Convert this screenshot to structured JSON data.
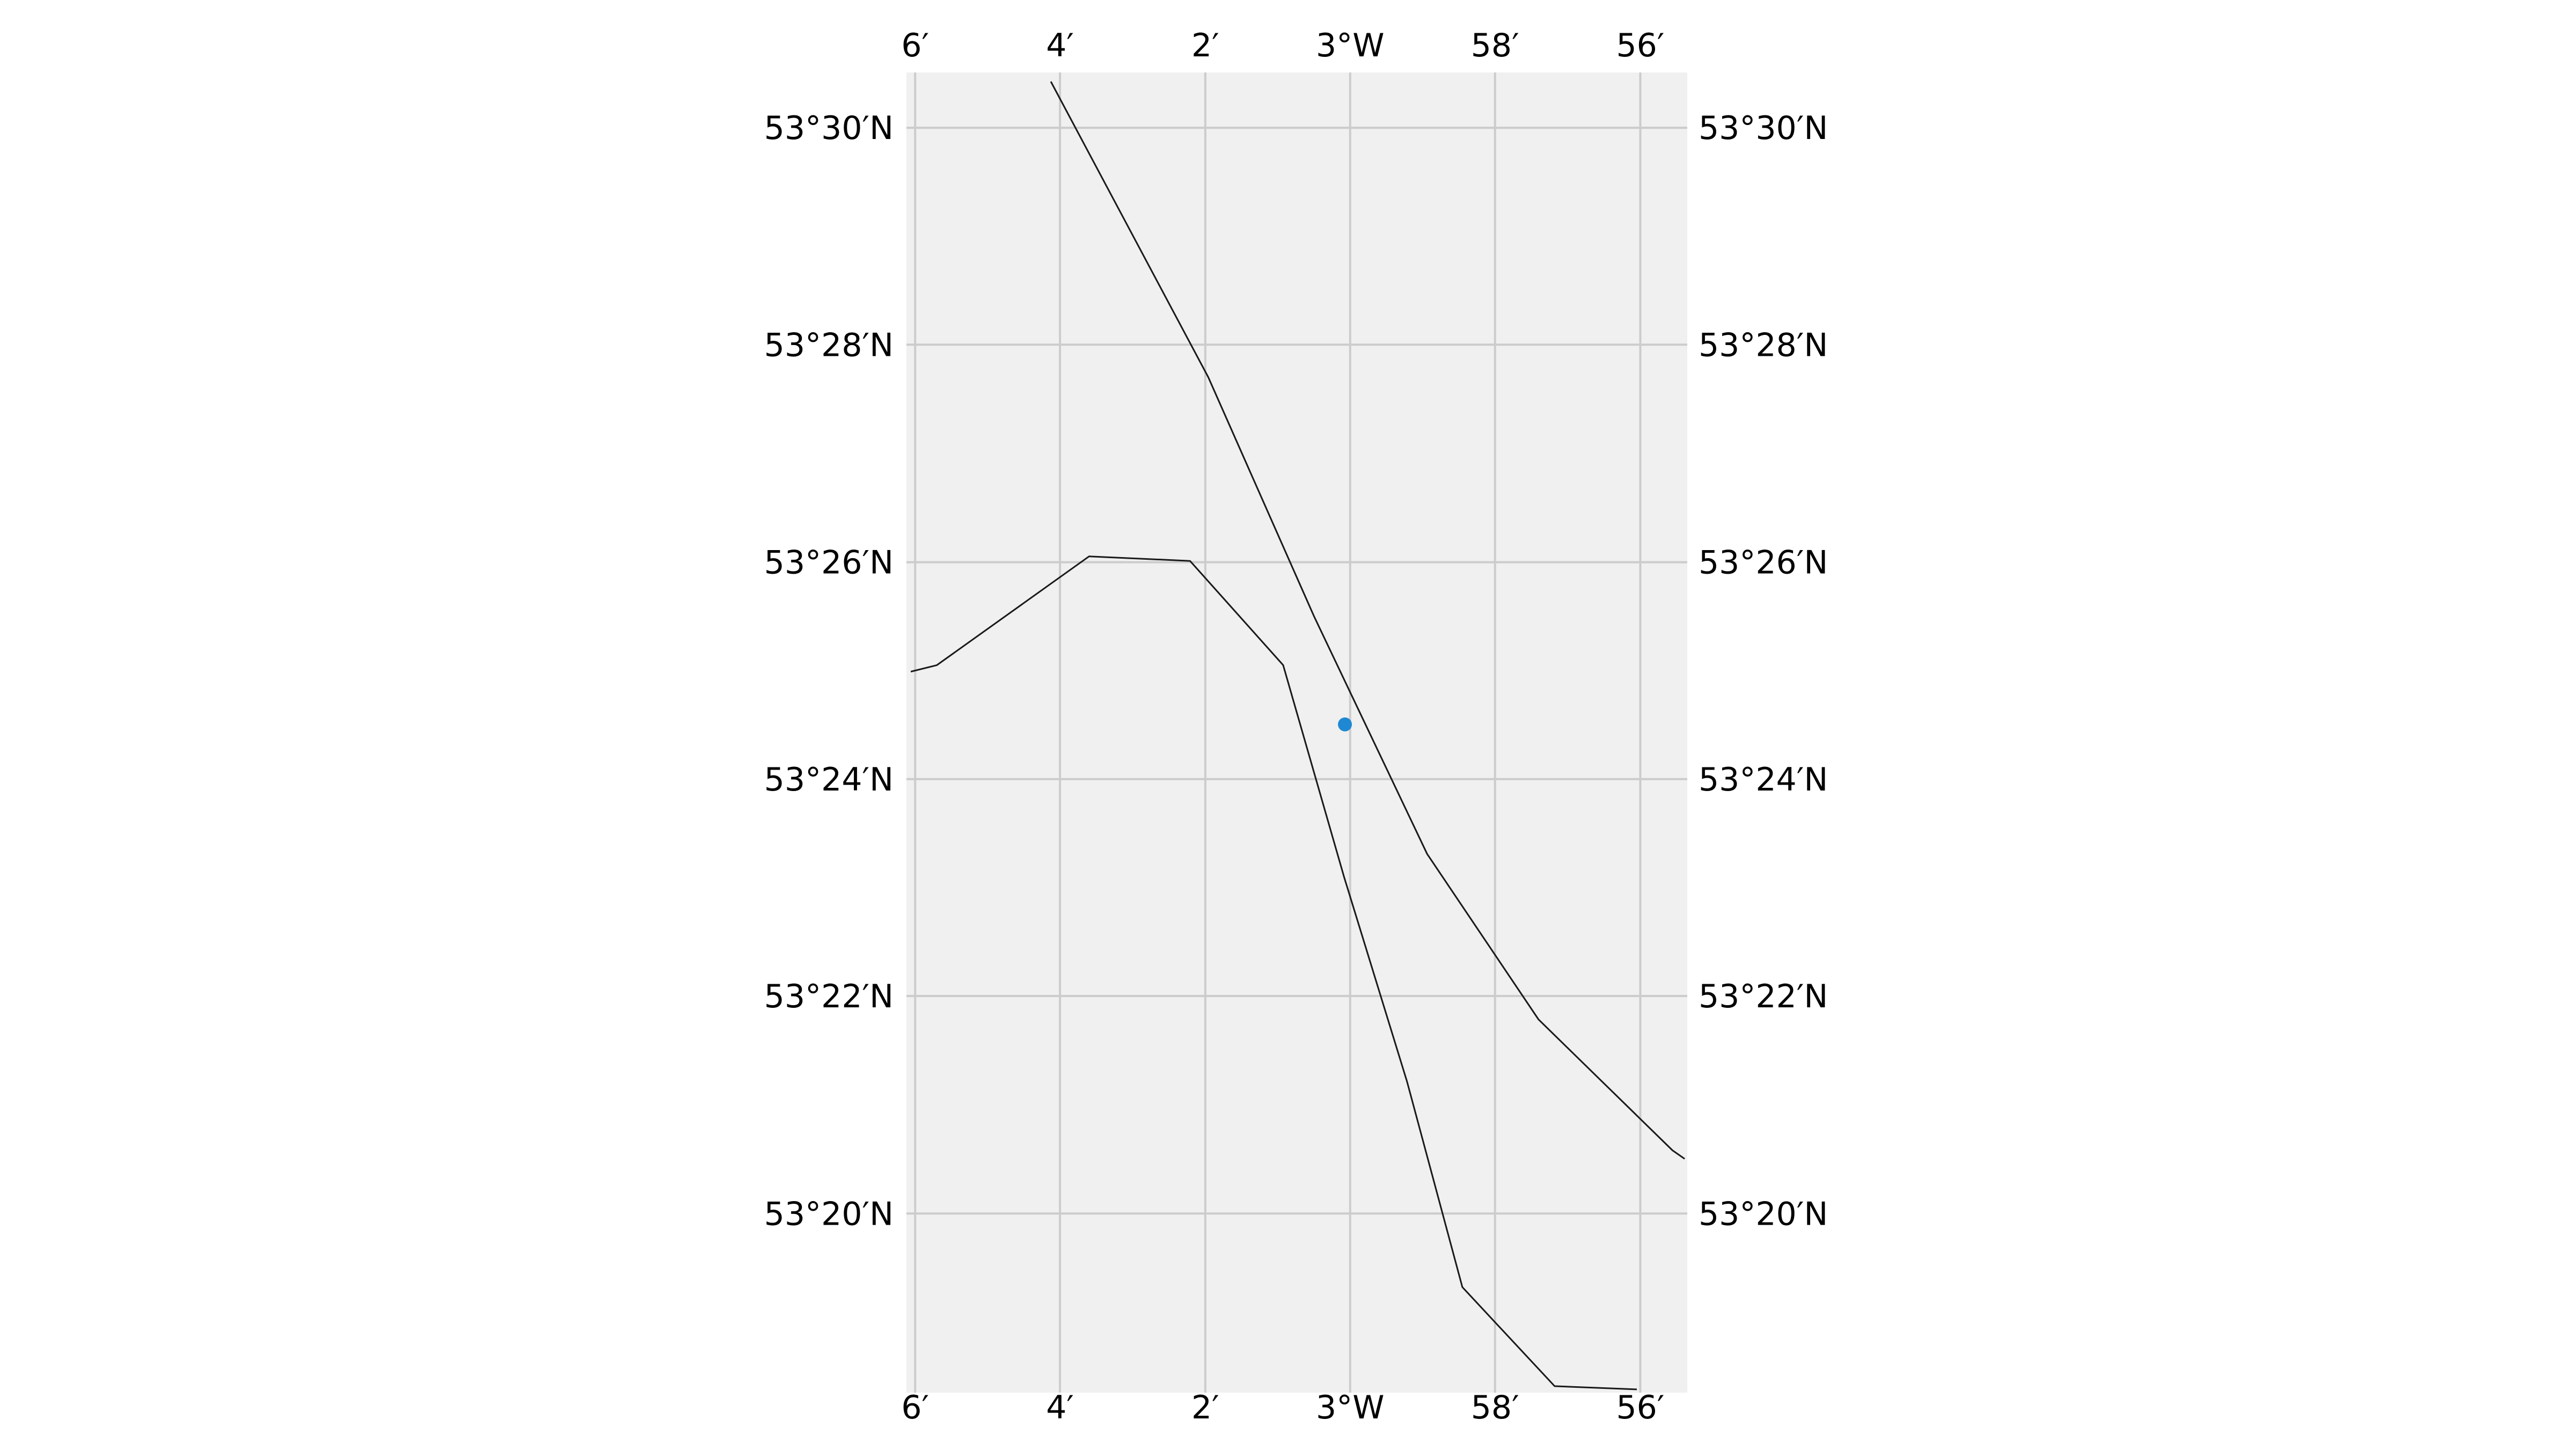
{
  "map": {
    "extent": {
      "lon_min": -3.102,
      "lon_max": -2.9225,
      "lat_min": 53.3058,
      "lat_max": 53.5085
    },
    "background_color": "#f0f0f0",
    "gridline_color": "#cccccc",
    "line_color": "#1a1a1a",
    "marker_color": "#1f88d2",
    "lon_ticks": [
      {
        "value": -3.1,
        "label": "6′"
      },
      {
        "value": -3.0667,
        "label": "4′"
      },
      {
        "value": -3.0333,
        "label": "2′"
      },
      {
        "value": -3.0,
        "label": "3°W"
      },
      {
        "value": -2.9667,
        "label": "58′"
      },
      {
        "value": -2.9333,
        "label": "56′"
      }
    ],
    "lat_ticks": [
      {
        "value": 53.5,
        "label": "53°30′N"
      },
      {
        "value": 53.4667,
        "label": "53°28′N"
      },
      {
        "value": 53.4333,
        "label": "53°26′N"
      },
      {
        "value": 53.4,
        "label": "53°24′N"
      },
      {
        "value": 53.3667,
        "label": "53°22′N"
      },
      {
        "value": 53.3333,
        "label": "53°20′N"
      }
    ],
    "lines": [
      {
        "id": "line-a",
        "points": [
          [
            -3.0688,
            53.5071
          ],
          [
            -3.0326,
            53.4617
          ],
          [
            -3.0083,
            53.425
          ],
          [
            -2.9823,
            53.3885
          ],
          [
            -2.9567,
            53.3631
          ],
          [
            -2.9259,
            53.343
          ],
          [
            -2.9231,
            53.3417
          ]
        ]
      },
      {
        "id": "line-b",
        "points": [
          [
            -3.101,
            53.4165
          ],
          [
            -3.095,
            53.4175
          ],
          [
            -3.06,
            53.4342
          ],
          [
            -3.0368,
            53.4335
          ],
          [
            -3.0154,
            53.4175
          ],
          [
            -3.0014,
            53.385
          ],
          [
            -2.9869,
            53.3535
          ],
          [
            -2.9742,
            53.322
          ],
          [
            -2.953,
            53.3068
          ],
          [
            -2.9341,
            53.3063
          ]
        ]
      }
    ],
    "markers": [
      {
        "id": "point-1",
        "lon": -3.0012,
        "lat": 53.4084
      }
    ]
  }
}
